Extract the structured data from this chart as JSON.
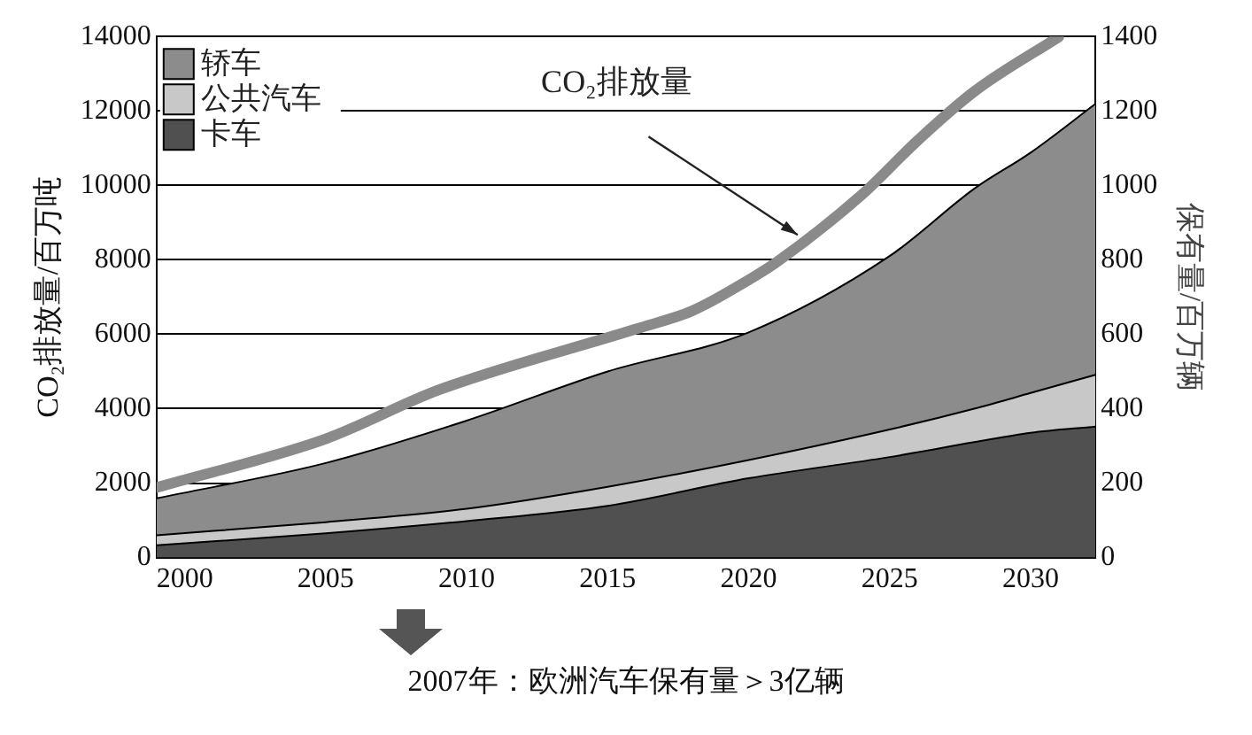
{
  "chart_data": {
    "type": "area",
    "stacked": true,
    "x": [
      1999,
      2005,
      2010,
      2015,
      2020,
      2025,
      2028,
      2030,
      2032.3
    ],
    "series": [
      {
        "name": "卡车",
        "color": "#505050",
        "axis": "y2",
        "values": [
          33,
          65,
          98,
          139,
          213,
          270,
          310,
          335,
          352
        ]
      },
      {
        "name": "公共汽车",
        "color": "#c8c8c8",
        "axis": "y2",
        "values": [
          27,
          30,
          33,
          51,
          49,
          74,
          90,
          107,
          139
        ]
      },
      {
        "name": "轿车",
        "color": "#8c8c8c",
        "axis": "y2",
        "values": [
          99,
          159,
          237,
          310,
          343,
          466,
          591,
          646,
          728
        ]
      },
      {
        "type": "line",
        "color": "#8a8a8a",
        "axis": "y",
        "x": [
          1999,
          2005,
          2009,
          2016,
          2018,
          2020,
          2021,
          2024,
          2026,
          2028,
          2031
        ],
        "values": [
          1880,
          3190,
          4500,
          6140,
          6630,
          7460,
          7940,
          9740,
          11210,
          12520,
          13990
        ]
      }
    ],
    "xlim": [
      1999,
      2032.3
    ],
    "xticks": [
      2000,
      2005,
      2010,
      2015,
      2020,
      2025,
      2030
    ],
    "ylim": [
      0,
      14000
    ],
    "yticks": [
      0,
      2000,
      4000,
      6000,
      8000,
      10000,
      12000,
      14000
    ],
    "y2lim": [
      0,
      1400
    ],
    "y2ticks": [
      0,
      200,
      400,
      600,
      800,
      1000,
      1200,
      1400
    ],
    "ylabel": "CO₂排放量/百万吨",
    "y2label": "保有量/百万辆",
    "grid": "y",
    "legend": "top left",
    "annotations": [
      {
        "text": "CO₂排放量",
        "x": 2022,
        "y": 8540
      },
      "2007年：欧洲汽车保有量＞3亿辆"
    ]
  }
}
